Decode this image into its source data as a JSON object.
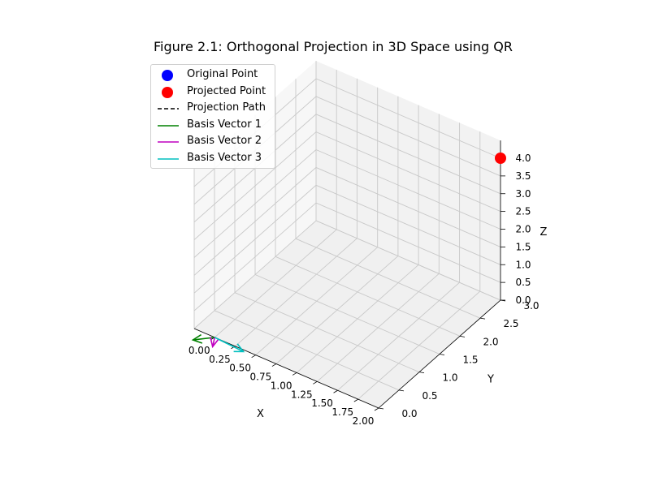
{
  "chart_data": {
    "type": "scatter",
    "title": "Figure 2.1: Orthogonal Projection in 3D Space using QR",
    "xlabel": "X",
    "ylabel": "Y",
    "zlabel": "Z",
    "xlim": [
      -0.25,
      2.0
    ],
    "ylim": [
      0.0,
      3.0
    ],
    "zlim": [
      0.0,
      4.0
    ],
    "x_ticks": [
      "0.00",
      "0.25",
      "0.50",
      "0.75",
      "1.00",
      "1.25",
      "1.50",
      "1.75",
      "2.00"
    ],
    "y_ticks": [
      "0.0",
      "0.5",
      "1.0",
      "1.5",
      "2.0",
      "2.5",
      "3.0"
    ],
    "z_ticks": [
      "0.0",
      "0.5",
      "1.0",
      "1.5",
      "2.0",
      "2.5",
      "3.0",
      "3.5",
      "4.0"
    ],
    "grid": true,
    "legend_position": "top-left",
    "points": [
      {
        "name": "Projected Point",
        "x": 2.0,
        "y": 3.0,
        "z": 4.0,
        "color": "#ff0000"
      }
    ],
    "vectors": [
      {
        "name": "Basis Vector 1",
        "from": [
          0,
          0,
          0
        ],
        "to": [
          -0.22,
          -0.09,
          -0.2
        ],
        "color": "#008000"
      },
      {
        "name": "Basis Vector 2",
        "from": [
          0,
          0,
          0
        ],
        "to": [
          0.02,
          -0.09,
          -0.15
        ],
        "color": "#bf00bf"
      },
      {
        "name": "Basis Vector 3",
        "from": [
          0,
          0,
          0
        ],
        "to": [
          0.4,
          -0.1,
          0.1
        ],
        "color": "#00bfbf"
      }
    ],
    "legend": [
      {
        "label": "Original Point",
        "kind": "dot",
        "color": "#0000ff"
      },
      {
        "label": "Projected Point",
        "kind": "dot",
        "color": "#ff0000"
      },
      {
        "label": "Projection Path",
        "kind": "dash",
        "color": "#000000"
      },
      {
        "label": "Basis Vector 1",
        "kind": "line",
        "color": "#008000"
      },
      {
        "label": "Basis Vector 2",
        "kind": "line",
        "color": "#bf00bf"
      },
      {
        "label": "Basis Vector 3",
        "kind": "line",
        "color": "#00bfbf"
      }
    ]
  }
}
